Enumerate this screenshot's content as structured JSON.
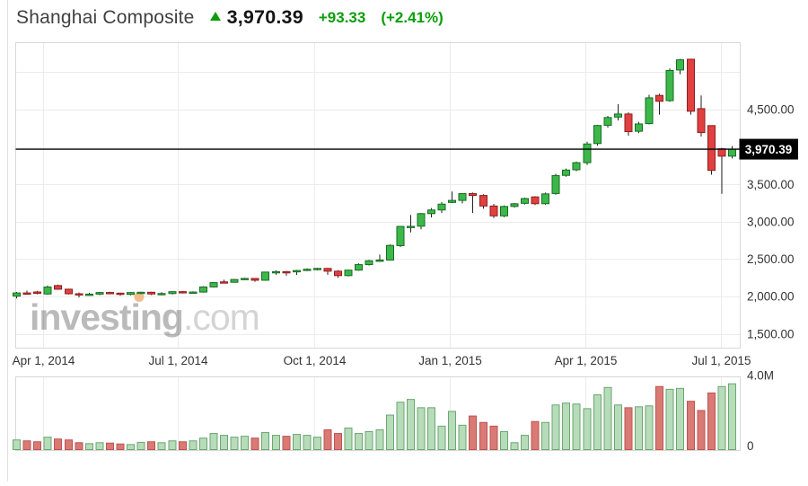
{
  "header": {
    "title": "Shanghai Composite",
    "arrow_icon": "up-arrow",
    "price": "3,970.39",
    "change": "+93.33",
    "change_percent": "(+2.41%)",
    "green": "#0b9e0b"
  },
  "watermark": {
    "brand": "investing",
    "tld": ".com"
  },
  "axes": {
    "price_labels": [
      {
        "text": "4,500.00",
        "value": 4500
      },
      {
        "text": "3,500.00",
        "value": 3500
      },
      {
        "text": "3,000.00",
        "value": 3000
      },
      {
        "text": "2,500.00",
        "value": 2500
      },
      {
        "text": "2,000.00",
        "value": 2000
      },
      {
        "text": "1,500.00",
        "value": 1500
      }
    ],
    "price_gridlines": [
      5000,
      4500,
      4000,
      3500,
      3000,
      2500,
      2000,
      1500
    ],
    "time_labels": [
      "Apr 1, 2014",
      "Jul 1, 2014",
      "Oct 1, 2014",
      "Jan 1, 2015",
      "Apr 1, 2015",
      "Jul 1, 2015"
    ],
    "volume_labels": {
      "top": "4.0M",
      "zero": "0",
      "top_value_millions": 4.0
    }
  },
  "price_tag": {
    "text": "3,970.39",
    "value": 3970.39,
    "bg": "#000000",
    "fg": "#ffffff"
  },
  "chart_data": {
    "type": "candlestick",
    "title": "Shanghai Composite weekly candles with volume",
    "x_tick_labels": [
      "Apr 1, 2014",
      "Jul 1, 2014",
      "Oct 1, 2014",
      "Jan 1, 2015",
      "Apr 1, 2015",
      "Jul 1, 2015"
    ],
    "price_axis_range": [
      1290,
      5390
    ],
    "volume_axis_range_millions": [
      0,
      4.0
    ],
    "current_price": 3970.39,
    "legend": "none",
    "grid": "on",
    "candles_ohlcv": [
      [
        2004,
        2060,
        1974,
        2047,
        0.55
      ],
      [
        2047,
        2078,
        2022,
        2043,
        0.5
      ],
      [
        2060,
        2075,
        2028,
        2041,
        0.45
      ],
      [
        2033,
        2146,
        2022,
        2126,
        0.7
      ],
      [
        2146,
        2158,
        2088,
        2097,
        0.6
      ],
      [
        2097,
        2104,
        2026,
        2036,
        0.55
      ],
      [
        2036,
        2052,
        1986,
        2026,
        0.4
      ],
      [
        2026,
        2049,
        2009,
        2031,
        0.35
      ],
      [
        2031,
        2061,
        2016,
        2053,
        0.4
      ],
      [
        2053,
        2063,
        2029,
        2044,
        0.38
      ],
      [
        2044,
        2051,
        2009,
        2027,
        0.33
      ],
      [
        2027,
        2059,
        2015,
        2052,
        0.3
      ],
      [
        2052,
        2063,
        2031,
        2056,
        0.42
      ],
      [
        2056,
        2063,
        2019,
        2033,
        0.45
      ],
      [
        2033,
        2057,
        2015,
        2039,
        0.4
      ],
      [
        2039,
        2071,
        2027,
        2064,
        0.5
      ],
      [
        2064,
        2073,
        2041,
        2050,
        0.45
      ],
      [
        2050,
        2069,
        2040,
        2059,
        0.5
      ],
      [
        2059,
        2136,
        2051,
        2127,
        0.65
      ],
      [
        2127,
        2193,
        2119,
        2185,
        0.9
      ],
      [
        2195,
        2224,
        2179,
        2187,
        0.8
      ],
      [
        2190,
        2233,
        2183,
        2227,
        0.7
      ],
      [
        2227,
        2249,
        2219,
        2241,
        0.75
      ],
      [
        2241,
        2247,
        2197,
        2217,
        0.65
      ],
      [
        2217,
        2331,
        2211,
        2326,
        0.95
      ],
      [
        2326,
        2349,
        2290,
        2332,
        0.8
      ],
      [
        2332,
        2341,
        2278,
        2329,
        0.75
      ],
      [
        2329,
        2356,
        2289,
        2347,
        0.85
      ],
      [
        2347,
        2376,
        2339,
        2364,
        0.8
      ],
      [
        2364,
        2383,
        2349,
        2375,
        0.7
      ],
      [
        2375,
        2381,
        2290,
        2338,
        1.1
      ],
      [
        2338,
        2352,
        2250,
        2279,
        0.9
      ],
      [
        2279,
        2358,
        2268,
        2352,
        1.2
      ],
      [
        2352,
        2441,
        2342,
        2426,
        0.9
      ],
      [
        2426,
        2490,
        2415,
        2478,
        1.0
      ],
      [
        2478,
        2560,
        2462,
        2487,
        1.1
      ],
      [
        2487,
        2696,
        2479,
        2683,
        1.9
      ],
      [
        2680,
        2944,
        2661,
        2937,
        2.6
      ],
      [
        2933,
        3091,
        2856,
        2938,
        2.75
      ],
      [
        2940,
        3118,
        2898,
        3108,
        2.3
      ],
      [
        3108,
        3182,
        3057,
        3157,
        2.3
      ],
      [
        3157,
        3262,
        3116,
        3235,
        1.3
      ],
      [
        3258,
        3404,
        3250,
        3285,
        2.1
      ],
      [
        3285,
        3383,
        3245,
        3376,
        1.35
      ],
      [
        3376,
        3390,
        3116,
        3351,
        1.85
      ],
      [
        3351,
        3367,
        3175,
        3210,
        1.5
      ],
      [
        3210,
        3238,
        3049,
        3078,
        1.3
      ],
      [
        3078,
        3219,
        3060,
        3204,
        1.0
      ],
      [
        3204,
        3251,
        3189,
        3240,
        0.4
      ],
      [
        3246,
        3322,
        3231,
        3310,
        0.8
      ],
      [
        3332,
        3341,
        3223,
        3241,
        1.55
      ],
      [
        3241,
        3390,
        3228,
        3372,
        1.5
      ],
      [
        3377,
        3641,
        3361,
        3617,
        2.45
      ],
      [
        3620,
        3711,
        3601,
        3691,
        2.55
      ],
      [
        3695,
        3805,
        3675,
        3790,
        2.5
      ],
      [
        3790,
        4070,
        3760,
        4040,
        2.25
      ],
      [
        4046,
        4296,
        4017,
        4287,
        3.0
      ],
      [
        4290,
        4416,
        4258,
        4394,
        3.4
      ],
      [
        4400,
        4572,
        4355,
        4441,
        2.45
      ],
      [
        4441,
        4462,
        4150,
        4205,
        2.3
      ],
      [
        4210,
        4336,
        4184,
        4308,
        2.35
      ],
      [
        4313,
        4698,
        4302,
        4657,
        2.4
      ],
      [
        4690,
        4712,
        4432,
        4611,
        3.45
      ],
      [
        4620,
        5051,
        4604,
        5023,
        3.3
      ],
      [
        5030,
        5178,
        4974,
        5166,
        3.35
      ],
      [
        5174,
        5176,
        4432,
        4478,
        2.65
      ],
      [
        4513,
        4690,
        4139,
        4193,
        2.15
      ],
      [
        4286,
        4290,
        3629,
        3687,
        3.1
      ],
      [
        3975,
        3988,
        3373,
        3877,
        3.45
      ],
      [
        3877,
        4012,
        3847,
        3970.39,
        3.6
      ]
    ],
    "colors": {
      "up_fill": "#3cb84a",
      "up_border": "#176b22",
      "down_fill": "#e04040",
      "down_border": "#8f1d1d",
      "wick": "#222222",
      "vol_up_fill": "#b7dcb9",
      "vol_up_border": "#6aa671",
      "vol_down_fill": "#d97a74",
      "vol_down_border": "#bf5350",
      "grid": "#ececec",
      "border": "#d8d8d8",
      "axis_text": "#333333",
      "highlight_dot": "#efae72"
    }
  }
}
